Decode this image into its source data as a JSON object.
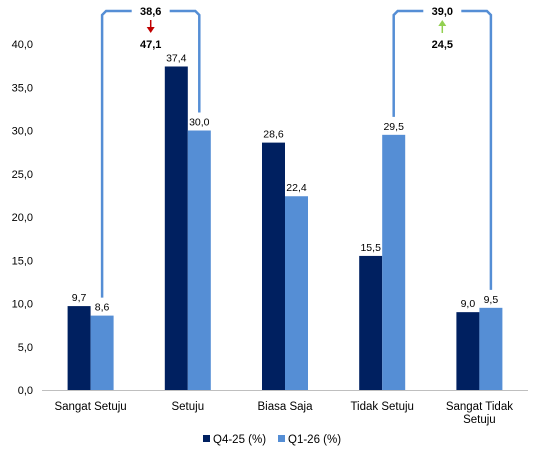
{
  "chart_data": {
    "type": "bar",
    "categories": [
      "Sangat Setuju",
      "Setuju",
      "Biasa Saja",
      "Tidak Setuju",
      "Sangat Tidak Setuju"
    ],
    "category_lines": [
      [
        "Sangat Setuju"
      ],
      [
        "Setuju"
      ],
      [
        "Biasa Saja"
      ],
      [
        "Tidak Setuju"
      ],
      [
        "Sangat Tidak",
        "Setuju"
      ]
    ],
    "series": [
      {
        "name": "Q4-25 (%)",
        "values": [
          9.7,
          37.4,
          28.6,
          15.5,
          9.0
        ],
        "labels": [
          "9,7",
          "37,4",
          "28,6",
          "15,5",
          "9,0"
        ],
        "color": "#002060"
      },
      {
        "name": "Q1-26 (%)",
        "values": [
          8.6,
          30.0,
          22.4,
          29.5,
          9.5
        ],
        "labels": [
          "8,6",
          "30,0",
          "22,4",
          "29,5",
          "9,5"
        ],
        "color": "#558ED5"
      }
    ],
    "ylim": [
      0,
      40
    ],
    "ytick_step": 5,
    "ytick_labels": [
      "0,0",
      "5,0",
      "10,0",
      "15,0",
      "20,0",
      "25,0",
      "30,0",
      "35,0",
      "40,0"
    ],
    "legend_position": "bottom",
    "grid": false,
    "annotations": [
      {
        "group": [
          "Sangat Setuju",
          "Setuju"
        ],
        "q1_26_sum": "38,6",
        "q4_25_sum": "47,1",
        "direction": "down",
        "arrow_color": "#C00000"
      },
      {
        "group": [
          "Tidak Setuju",
          "Sangat Tidak Setuju"
        ],
        "q1_26_sum": "39,0",
        "q4_25_sum": "24,5",
        "direction": "up",
        "arrow_color": "#92D050"
      }
    ],
    "bracket_color": "#558ED5"
  }
}
